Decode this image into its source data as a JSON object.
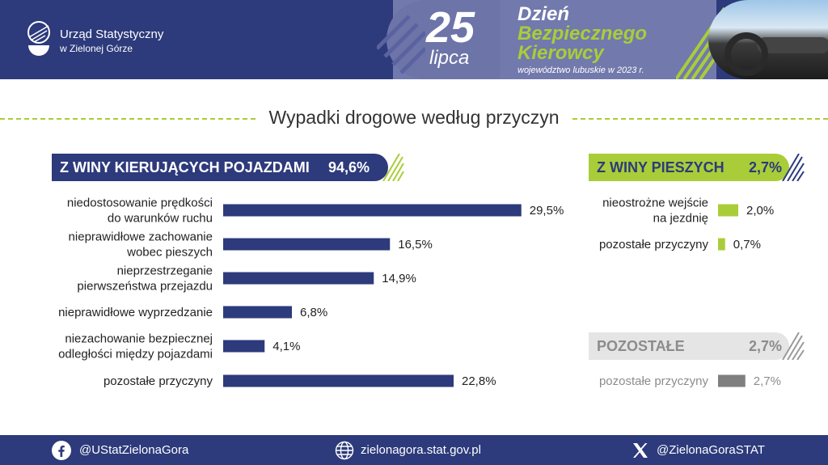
{
  "header": {
    "org_line1": "Urząd Statystyczny",
    "org_line2": "w Zielonej Górze",
    "day": "25",
    "month": "lipca",
    "event_line1": "Dzień",
    "event_line2": "Bezpiecznego",
    "event_line3": "Kierowcy",
    "subtitle": "województwo lubuskie w 2023 r."
  },
  "title": "Wypadki drogowe według przyczyn",
  "drivers": {
    "label": "Z WINY KIERUJĄCYCH POJAZDAMI",
    "percent": "94,6%"
  },
  "pedestrians": {
    "label": "Z WINY PIESZYCH",
    "percent": "2,7%"
  },
  "other": {
    "label": "POZOSTAŁE",
    "percent": "2,7%"
  },
  "colors": {
    "navy": "#2d3a7b",
    "green": "#a9cd39",
    "gray": "#7f7f7f",
    "light_gray": "#e5e5e5"
  },
  "chart_data": [
    {
      "type": "bar",
      "orientation": "horizontal",
      "categories": [
        [
          "niedostosowanie prędkości",
          "do warunków ruchu"
        ],
        [
          "nieprawidłowe zachowanie",
          "wobec pieszych"
        ],
        [
          "nieprzestrzeganie",
          "pierwszeństwa przejazdu"
        ],
        [
          "nieprawidłowe wyprzedzanie"
        ],
        [
          "niezachowanie bezpiecznej",
          "odległości między pojazdami"
        ],
        [
          "pozostałe przyczyny"
        ]
      ],
      "values": [
        29.5,
        16.5,
        14.9,
        6.8,
        4.1,
        22.8
      ],
      "labels": [
        "29,5%",
        "16,5%",
        "14,9%",
        "6,8%",
        "4,1%",
        "22,8%"
      ],
      "color": "#2d3a7b"
    },
    {
      "type": "bar",
      "orientation": "horizontal",
      "categories": [
        [
          "nieostrożne wejście",
          "na jezdnię"
        ],
        [
          "pozostałe przyczyny"
        ]
      ],
      "values": [
        2.0,
        0.7
      ],
      "labels": [
        "2,0%",
        "0,7%"
      ],
      "color": "#a9cd39"
    },
    {
      "type": "bar",
      "orientation": "horizontal",
      "categories": [
        [
          "pozostałe przyczyny"
        ]
      ],
      "values": [
        2.7
      ],
      "labels": [
        "2,7%"
      ],
      "color": "#7f7f7f"
    }
  ],
  "footer": {
    "facebook": "@UStatZielonaGora",
    "website": "zielonagora.stat.gov.pl",
    "x": "@ZielonaGoraSTAT"
  }
}
